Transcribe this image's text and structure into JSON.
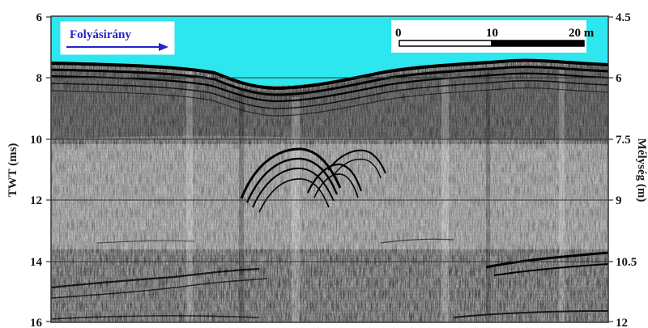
{
  "left_axis": {
    "title": "TWT (ms)",
    "ticks": [
      "6",
      "8",
      "10",
      "12",
      "14",
      "16"
    ]
  },
  "right_axis": {
    "title": "Mélység (m)",
    "ticks": [
      "4.5",
      "6",
      "7.5",
      "9",
      "10.5",
      "12"
    ]
  },
  "flow_direction": {
    "label": "Folyásirány",
    "arrow_icon": "right-arrow-icon"
  },
  "scale_bar": {
    "labels": [
      "0",
      "10",
      "20 m"
    ]
  },
  "colors": {
    "water": "#2ee6ee",
    "flow_label": "#2424c8",
    "frame": "#333333",
    "noise_base": "#c4c4c4"
  }
}
